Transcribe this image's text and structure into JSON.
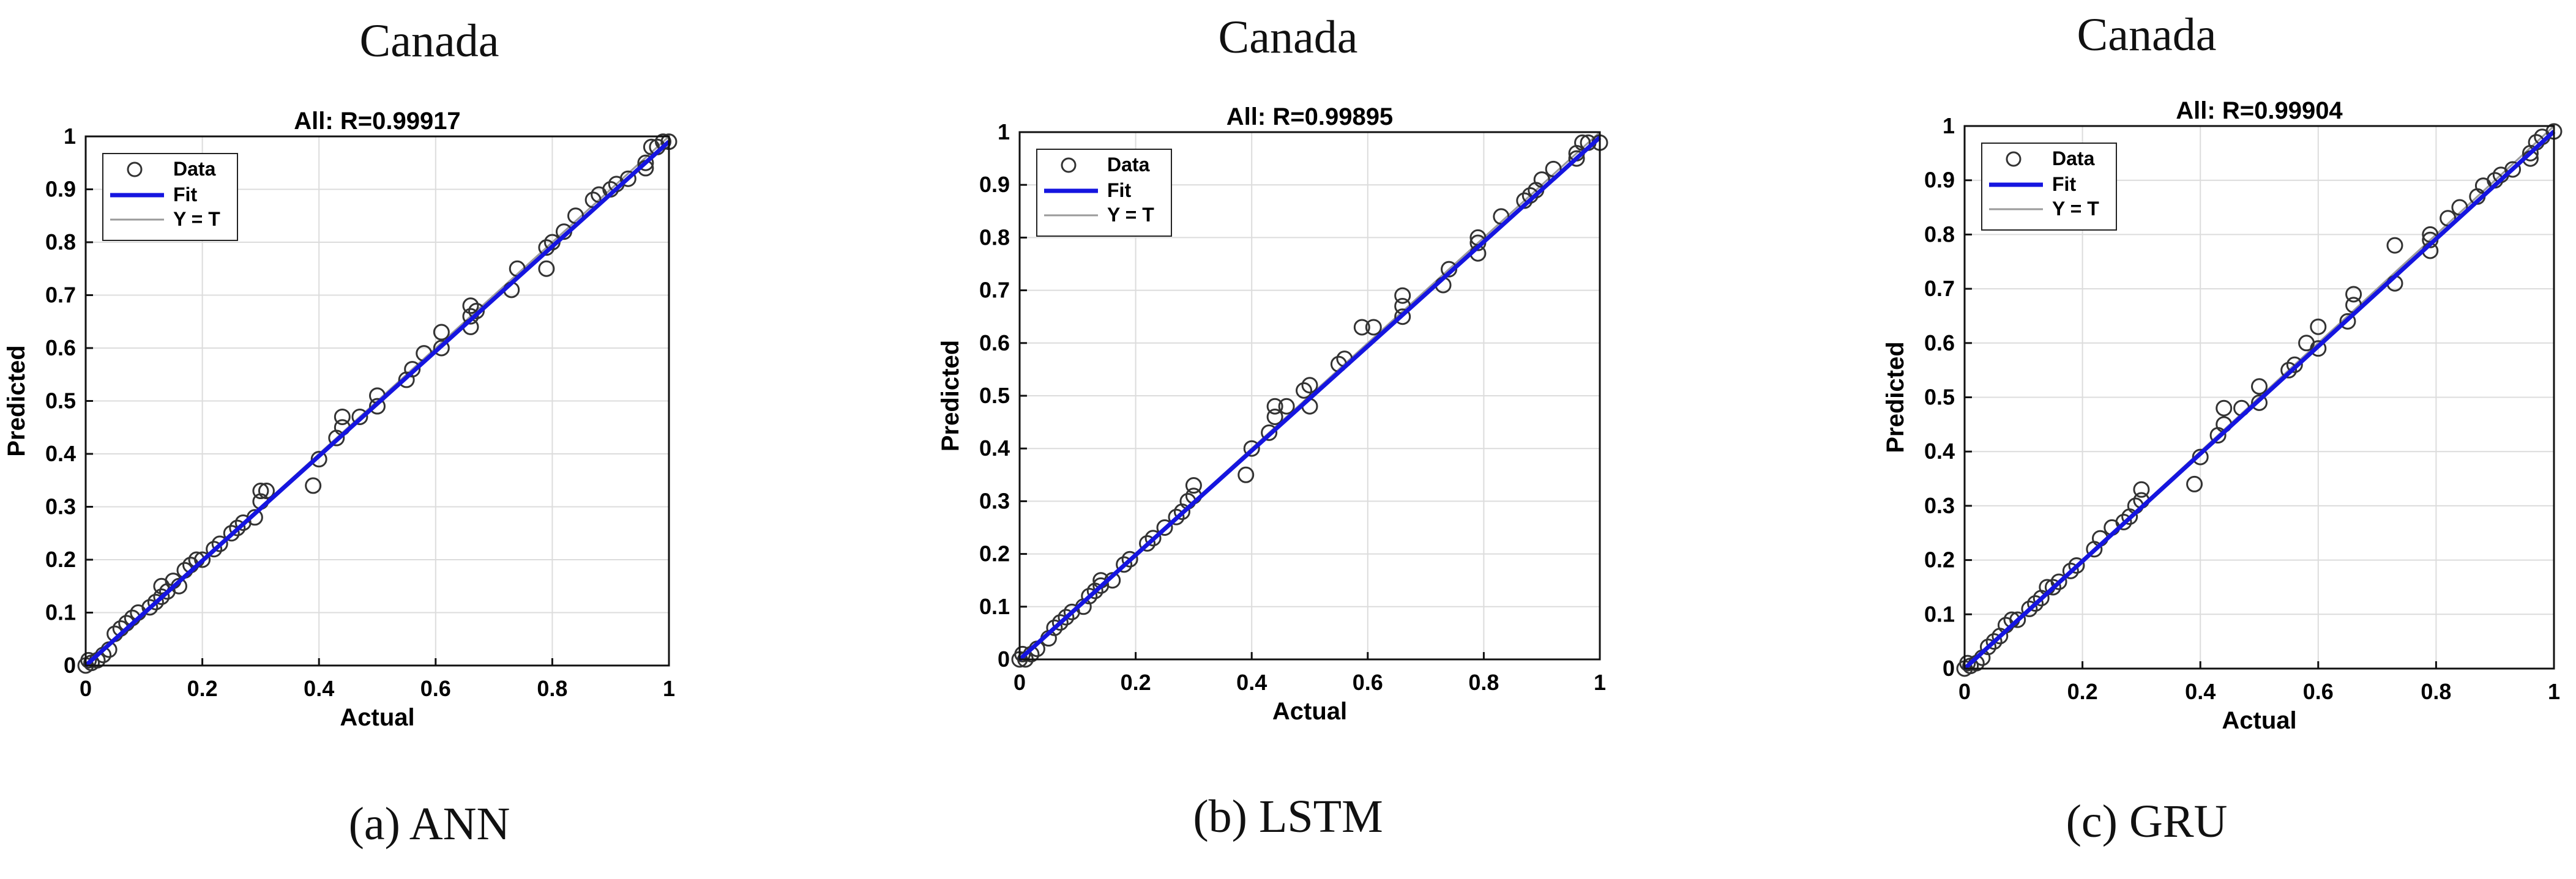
{
  "figures": [
    {
      "country": "Canada",
      "caption": "(a) ANN"
    },
    {
      "country": "Canada",
      "caption": "(b) LSTM"
    },
    {
      "country": "Canada",
      "caption": "(c) GRU"
    }
  ],
  "colors": {
    "fit": "#1515e0",
    "yeqt": "#9a9a9a",
    "data_marker": "#333333"
  },
  "chart_data": [
    {
      "type": "scatter",
      "title": "All: R=0.99917",
      "xlabel": "Actual",
      "ylabel": "Predicted",
      "xlim": [
        0,
        1
      ],
      "ylim": [
        0,
        1
      ],
      "xticks": [
        "0",
        "0.2",
        "0.4",
        "0.6",
        "0.8",
        "1"
      ],
      "yticks": [
        "0",
        "0.1",
        "0.2",
        "0.3",
        "0.4",
        "0.5",
        "0.6",
        "0.7",
        "0.8",
        "0.9",
        "1"
      ],
      "grid": true,
      "legend": {
        "placement": "top-left",
        "entries": [
          "Data",
          "Fit",
          "Y = T"
        ]
      },
      "fit": {
        "x": [
          0,
          1
        ],
        "y": [
          0,
          0.99
        ]
      },
      "series": [
        {
          "name": "Data",
          "points": [
            [
              0,
              0.0
            ],
            [
              0.005,
              0.01
            ],
            [
              0.01,
              0.005
            ],
            [
              0.02,
              0.01
            ],
            [
              0.03,
              0.02
            ],
            [
              0.04,
              0.03
            ],
            [
              0.05,
              0.06
            ],
            [
              0.06,
              0.07
            ],
            [
              0.07,
              0.08
            ],
            [
              0.08,
              0.09
            ],
            [
              0.09,
              0.1
            ],
            [
              0.11,
              0.11
            ],
            [
              0.12,
              0.12
            ],
            [
              0.13,
              0.13
            ],
            [
              0.13,
              0.15
            ],
            [
              0.14,
              0.14
            ],
            [
              0.15,
              0.16
            ],
            [
              0.16,
              0.15
            ],
            [
              0.17,
              0.18
            ],
            [
              0.18,
              0.19
            ],
            [
              0.19,
              0.2
            ],
            [
              0.2,
              0.2
            ],
            [
              0.22,
              0.22
            ],
            [
              0.23,
              0.23
            ],
            [
              0.25,
              0.25
            ],
            [
              0.26,
              0.26
            ],
            [
              0.27,
              0.27
            ],
            [
              0.29,
              0.28
            ],
            [
              0.3,
              0.31
            ],
            [
              0.3,
              0.33
            ],
            [
              0.31,
              0.33
            ],
            [
              0.39,
              0.34
            ],
            [
              0.4,
              0.39
            ],
            [
              0.43,
              0.43
            ],
            [
              0.44,
              0.45
            ],
            [
              0.44,
              0.47
            ],
            [
              0.47,
              0.47
            ],
            [
              0.5,
              0.49
            ],
            [
              0.5,
              0.51
            ],
            [
              0.55,
              0.54
            ],
            [
              0.56,
              0.56
            ],
            [
              0.58,
              0.59
            ],
            [
              0.61,
              0.6
            ],
            [
              0.61,
              0.63
            ],
            [
              0.66,
              0.64
            ],
            [
              0.66,
              0.66
            ],
            [
              0.66,
              0.68
            ],
            [
              0.67,
              0.67
            ],
            [
              0.73,
              0.71
            ],
            [
              0.74,
              0.75
            ],
            [
              0.79,
              0.75
            ],
            [
              0.79,
              0.79
            ],
            [
              0.8,
              0.8
            ],
            [
              0.82,
              0.82
            ],
            [
              0.84,
              0.85
            ],
            [
              0.87,
              0.88
            ],
            [
              0.88,
              0.89
            ],
            [
              0.9,
              0.9
            ],
            [
              0.91,
              0.91
            ],
            [
              0.93,
              0.92
            ],
            [
              0.96,
              0.94
            ],
            [
              0.96,
              0.95
            ],
            [
              0.97,
              0.98
            ],
            [
              0.98,
              0.98
            ],
            [
              0.99,
              0.99
            ],
            [
              1.0,
              0.99
            ]
          ]
        }
      ]
    },
    {
      "type": "scatter",
      "title": "All: R=0.99895",
      "xlabel": "Actual",
      "ylabel": "Predicted",
      "xlim": [
        0,
        1
      ],
      "ylim": [
        0,
        1
      ],
      "xticks": [
        "0",
        "0.2",
        "0.4",
        "0.6",
        "0.8",
        "1"
      ],
      "yticks": [
        "0",
        "0.1",
        "0.2",
        "0.3",
        "0.4",
        "0.5",
        "0.6",
        "0.7",
        "0.8",
        "0.9",
        "1"
      ],
      "grid": true,
      "legend": {
        "placement": "top-left",
        "entries": [
          "Data",
          "Fit",
          "Y = T"
        ]
      },
      "fit": {
        "x": [
          0,
          1
        ],
        "y": [
          0,
          0.99
        ]
      },
      "series": [
        {
          "name": "Data",
          "points": [
            [
              0,
              0.0
            ],
            [
              0.005,
              0.01
            ],
            [
              0.01,
              0.0
            ],
            [
              0.02,
              0.01
            ],
            [
              0.03,
              0.02
            ],
            [
              0.05,
              0.04
            ],
            [
              0.06,
              0.06
            ],
            [
              0.07,
              0.07
            ],
            [
              0.08,
              0.08
            ],
            [
              0.09,
              0.09
            ],
            [
              0.11,
              0.1
            ],
            [
              0.12,
              0.12
            ],
            [
              0.13,
              0.13
            ],
            [
              0.14,
              0.14
            ],
            [
              0.14,
              0.15
            ],
            [
              0.16,
              0.15
            ],
            [
              0.18,
              0.18
            ],
            [
              0.19,
              0.19
            ],
            [
              0.22,
              0.22
            ],
            [
              0.23,
              0.23
            ],
            [
              0.25,
              0.25
            ],
            [
              0.27,
              0.27
            ],
            [
              0.28,
              0.28
            ],
            [
              0.29,
              0.3
            ],
            [
              0.3,
              0.31
            ],
            [
              0.3,
              0.33
            ],
            [
              0.39,
              0.35
            ],
            [
              0.4,
              0.4
            ],
            [
              0.43,
              0.43
            ],
            [
              0.44,
              0.46
            ],
            [
              0.44,
              0.48
            ],
            [
              0.46,
              0.48
            ],
            [
              0.49,
              0.51
            ],
            [
              0.5,
              0.48
            ],
            [
              0.5,
              0.52
            ],
            [
              0.55,
              0.56
            ],
            [
              0.56,
              0.57
            ],
            [
              0.59,
              0.63
            ],
            [
              0.61,
              0.63
            ],
            [
              0.66,
              0.65
            ],
            [
              0.66,
              0.67
            ],
            [
              0.66,
              0.69
            ],
            [
              0.73,
              0.71
            ],
            [
              0.74,
              0.74
            ],
            [
              0.79,
              0.77
            ],
            [
              0.79,
              0.79
            ],
            [
              0.79,
              0.8
            ],
            [
              0.83,
              0.84
            ],
            [
              0.87,
              0.87
            ],
            [
              0.88,
              0.88
            ],
            [
              0.89,
              0.89
            ],
            [
              0.9,
              0.91
            ],
            [
              0.92,
              0.93
            ],
            [
              0.96,
              0.95
            ],
            [
              0.96,
              0.96
            ],
            [
              0.97,
              0.98
            ],
            [
              0.98,
              0.98
            ],
            [
              1.0,
              0.98
            ]
          ]
        }
      ]
    },
    {
      "type": "scatter",
      "title": "All: R=0.99904",
      "xlabel": "Actual",
      "ylabel": "Predicted",
      "xlim": [
        0,
        1
      ],
      "ylim": [
        0,
        1
      ],
      "xticks": [
        "0",
        "0.2",
        "0.4",
        "0.6",
        "0.8",
        "1"
      ],
      "yticks": [
        "0",
        "0.1",
        "0.2",
        "0.3",
        "0.4",
        "0.5",
        "0.6",
        "0.7",
        "0.8",
        "0.9",
        "1"
      ],
      "grid": true,
      "legend": {
        "placement": "top-left",
        "entries": [
          "Data",
          "Fit",
          "Y = T"
        ]
      },
      "fit": {
        "x": [
          0,
          1
        ],
        "y": [
          0,
          0.99
        ]
      },
      "series": [
        {
          "name": "Data",
          "points": [
            [
              0,
              0.0
            ],
            [
              0.005,
              0.01
            ],
            [
              0.01,
              0.005
            ],
            [
              0.02,
              0.01
            ],
            [
              0.03,
              0.02
            ],
            [
              0.04,
              0.04
            ],
            [
              0.05,
              0.05
            ],
            [
              0.06,
              0.06
            ],
            [
              0.07,
              0.08
            ],
            [
              0.08,
              0.09
            ],
            [
              0.09,
              0.09
            ],
            [
              0.11,
              0.11
            ],
            [
              0.12,
              0.12
            ],
            [
              0.13,
              0.13
            ],
            [
              0.14,
              0.15
            ],
            [
              0.15,
              0.15
            ],
            [
              0.16,
              0.16
            ],
            [
              0.18,
              0.18
            ],
            [
              0.19,
              0.19
            ],
            [
              0.22,
              0.22
            ],
            [
              0.23,
              0.24
            ],
            [
              0.25,
              0.26
            ],
            [
              0.27,
              0.27
            ],
            [
              0.28,
              0.28
            ],
            [
              0.29,
              0.3
            ],
            [
              0.3,
              0.31
            ],
            [
              0.3,
              0.33
            ],
            [
              0.39,
              0.34
            ],
            [
              0.4,
              0.39
            ],
            [
              0.43,
              0.43
            ],
            [
              0.44,
              0.45
            ],
            [
              0.44,
              0.48
            ],
            [
              0.47,
              0.48
            ],
            [
              0.5,
              0.49
            ],
            [
              0.5,
              0.52
            ],
            [
              0.55,
              0.55
            ],
            [
              0.56,
              0.56
            ],
            [
              0.58,
              0.6
            ],
            [
              0.6,
              0.59
            ],
            [
              0.6,
              0.63
            ],
            [
              0.65,
              0.64
            ],
            [
              0.66,
              0.67
            ],
            [
              0.66,
              0.69
            ],
            [
              0.73,
              0.71
            ],
            [
              0.73,
              0.78
            ],
            [
              0.79,
              0.77
            ],
            [
              0.79,
              0.79
            ],
            [
              0.79,
              0.8
            ],
            [
              0.82,
              0.83
            ],
            [
              0.84,
              0.85
            ],
            [
              0.87,
              0.87
            ],
            [
              0.88,
              0.89
            ],
            [
              0.9,
              0.9
            ],
            [
              0.91,
              0.91
            ],
            [
              0.93,
              0.92
            ],
            [
              0.96,
              0.94
            ],
            [
              0.96,
              0.95
            ],
            [
              0.97,
              0.97
            ],
            [
              0.98,
              0.98
            ],
            [
              1.0,
              0.99
            ]
          ]
        }
      ]
    }
  ]
}
